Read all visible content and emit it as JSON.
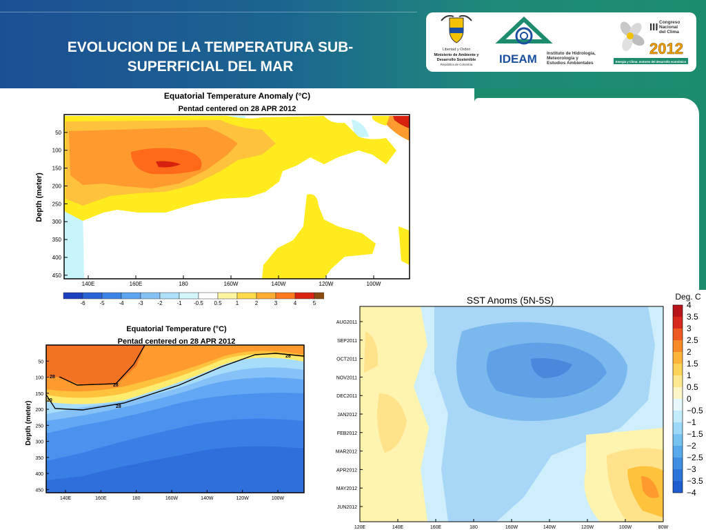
{
  "slide": {
    "title_line1": "EVOLUCION DE LA TEMPERATURA SUB-",
    "title_line2": "SUPERFICIAL DEL MAR"
  },
  "logos": {
    "ministry": {
      "line1": "Libertad y Orden",
      "line2": "Ministerio de Ambiente y",
      "line3": "Desarrollo Sostenible",
      "line4": "República de Colombia"
    },
    "ideam": {
      "name": "IDEAM",
      "line1": "Instituto de Hidrología,",
      "line2": "Meteorología y",
      "line3": "Estudios Ambientales"
    },
    "congreso": {
      "numeral": "III",
      "line1": "Congreso",
      "line2": "Nacional",
      "line3": "del Clima",
      "year": "2012",
      "tagline": "Energía y Clima: motores del desarrollo económico"
    }
  },
  "colors": {
    "header_blue": "#1d4f94",
    "header_green": "#1d8c6e"
  },
  "chart_data": [
    {
      "type": "heatmap",
      "title": "Equatorial Temperature Anomaly (°C)",
      "subtitle": "Pentad centered on 28 APR 2012",
      "ylabel": "Depth (meter)",
      "x_ticks": [
        "140E",
        "160E",
        "180",
        "160W",
        "140W",
        "120W",
        "100W"
      ],
      "y_ticks": [
        "50",
        "100",
        "150",
        "200",
        "250",
        "300",
        "350",
        "400",
        "450"
      ],
      "ylim": [
        0,
        460
      ],
      "colorbar": [
        "-6",
        "-5",
        "-4",
        "-3",
        "-2",
        "-1",
        "-0.5",
        "0.5",
        "1",
        "2",
        "3",
        "4",
        "5"
      ]
    },
    {
      "type": "heatmap",
      "title": "Equatorial Temperature (°C)",
      "subtitle": "Pentad centered on 28 APR 2012",
      "ylabel": "Depth (meter)",
      "x_ticks": [
        "140E",
        "160E",
        "180",
        "160W",
        "140W",
        "120W",
        "100W"
      ],
      "y_ticks": [
        "50",
        "100",
        "150",
        "200",
        "250",
        "300",
        "350",
        "400",
        "450"
      ],
      "isotherm_labels": [
        "28",
        "28",
        "28",
        "20",
        "28"
      ]
    },
    {
      "type": "heatmap",
      "title": "SST Anoms (5N-5S)",
      "colorbar_title": "Deg. C",
      "y_ticks": [
        "AUG2011",
        "SEP2011",
        "OCT2011",
        "NOV2011",
        "DEC2011",
        "JAN2012",
        "FEB2012",
        "MAR2012",
        "APR2012",
        "MAY2012",
        "JUN2012"
      ],
      "x_ticks": [
        "120E",
        "140E",
        "160E",
        "180",
        "160W",
        "140W",
        "120W",
        "100W",
        "80W"
      ],
      "colorbar": [
        "4",
        "3.5",
        "3",
        "2.5",
        "2",
        "1.5",
        "1",
        "0.5",
        "0",
        "−0.5",
        "−1",
        "−1.5",
        "−2",
        "−2.5",
        "−3",
        "−3.5",
        "−4"
      ]
    }
  ]
}
